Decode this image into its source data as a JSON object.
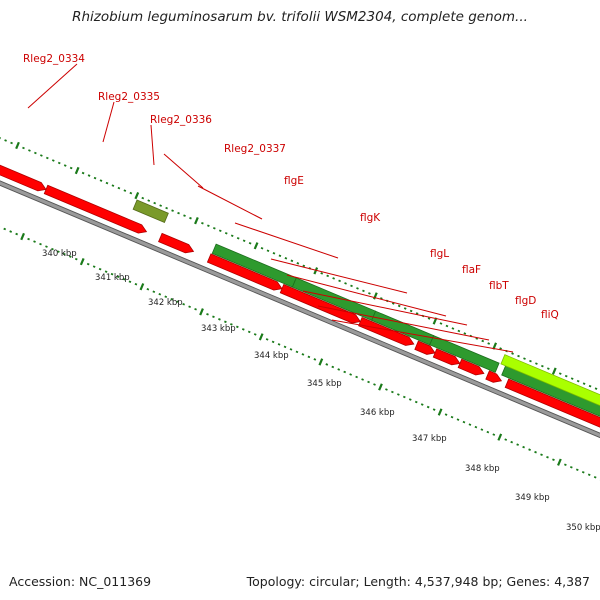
{
  "title": "Rhizobium leguminosarum bv. trifolii WSM2304, complete genom...",
  "footer": {
    "accession": "Accession: NC_011369",
    "summary": "Topology: circular; Length: 4,537,948 bp; Genes: 4,387"
  },
  "colors": {
    "gene_red": "#ff0000",
    "gene_green": "#2e9a2e",
    "gene_olive": "#7a9a2a",
    "gene_lime": "#aaff00",
    "label_red": "#cc0000",
    "tick_green": "#1a7a1a",
    "backbone_grey": "#9a9a9a"
  },
  "gene_labels": [
    "Rleg2_0334",
    "Rleg2_0335",
    "Rleg2_0336",
    "Rleg2_0337",
    "flgE",
    "flgK",
    "flgL",
    "flaF",
    "flbT",
    "flgD",
    "fliQ"
  ],
  "scale_labels": [
    "340 kbp",
    "341 kbp",
    "342 kbp",
    "343 kbp",
    "344 kbp",
    "345 kbp",
    "346 kbp",
    "347 kbp",
    "348 kbp",
    "349 kbp",
    "350 kbp"
  ]
}
